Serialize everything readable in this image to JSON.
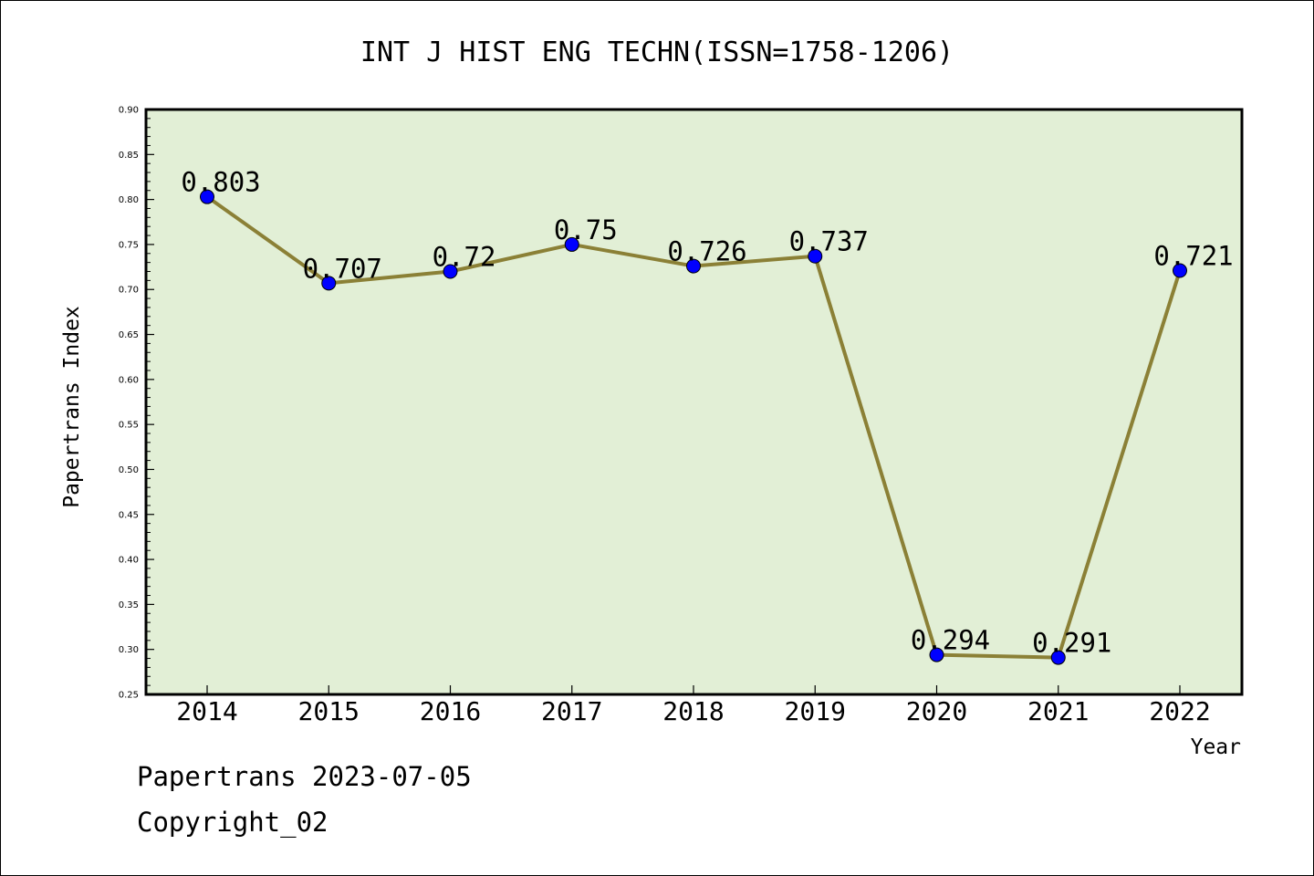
{
  "chart_data": {
    "type": "line",
    "title": "INT J HIST ENG TECHN(ISSN=1758-1206)",
    "xlabel": "Year",
    "ylabel": "Papertrans Index",
    "categories": [
      "2014",
      "2015",
      "2016",
      "2017",
      "2018",
      "2019",
      "2020",
      "2021",
      "2022"
    ],
    "values": [
      0.803,
      0.707,
      0.72,
      0.75,
      0.726,
      0.737,
      0.294,
      0.291,
      0.721
    ],
    "data_labels": [
      "0.803",
      "0.707",
      "0.72",
      "0.75",
      "0.726",
      "0.737",
      "0.294",
      "0.291",
      "0.721"
    ],
    "ylim": [
      0.25,
      0.9
    ],
    "yticks": [
      "0.25",
      "0.30",
      "0.35",
      "0.40",
      "0.45",
      "0.50",
      "0.55",
      "0.60",
      "0.65",
      "0.70",
      "0.75",
      "0.80",
      "0.85",
      "0.90"
    ],
    "grid": false,
    "colors": {
      "plot_background": "#e2efd6",
      "line": "#8b8036",
      "marker": "#0000ff"
    }
  },
  "footer": {
    "date_line": "Papertrans 2023-07-05",
    "copyright": "Copyright_02"
  }
}
